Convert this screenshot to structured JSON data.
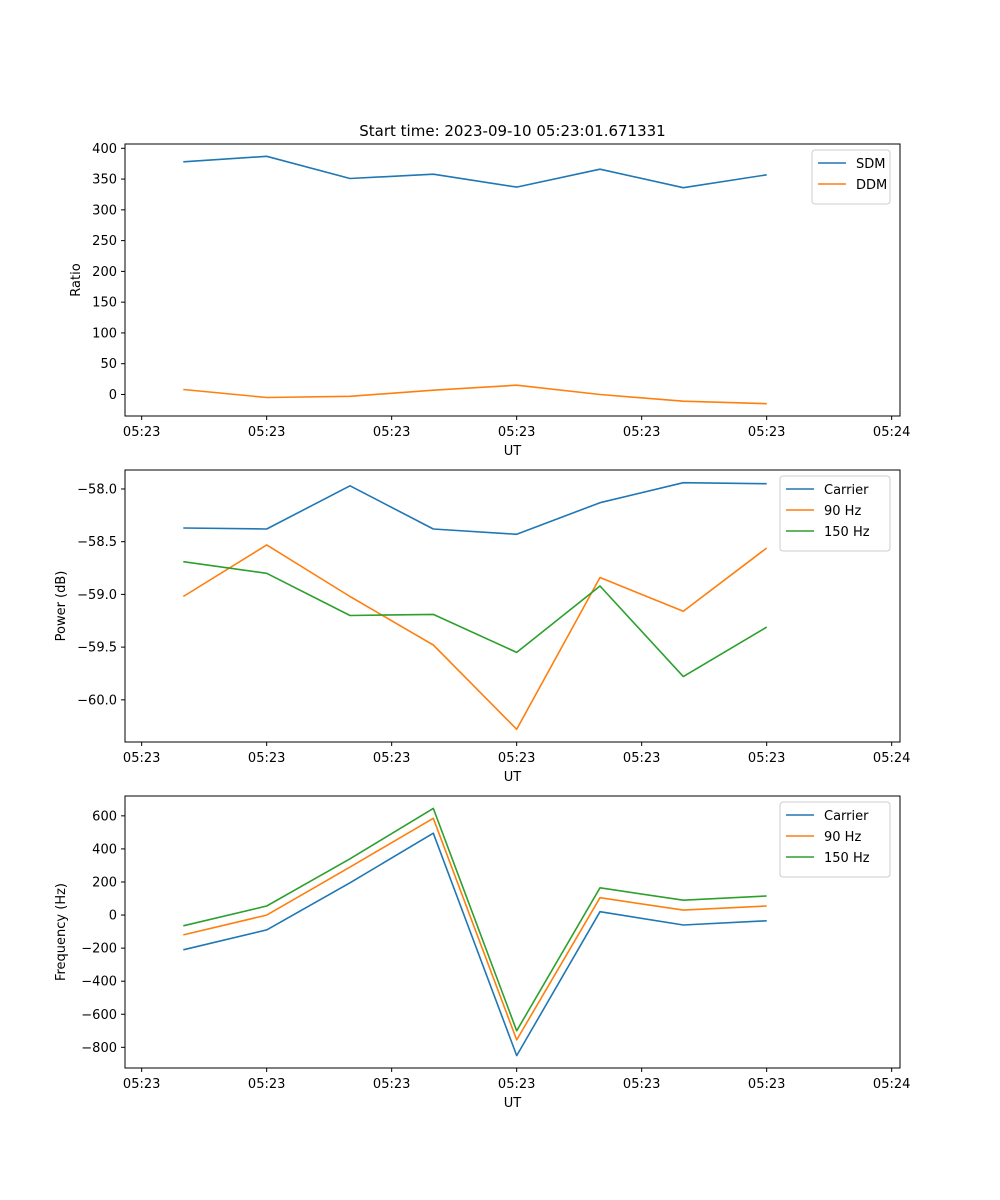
{
  "figure": {
    "title": "Start time: 2023-09-10 05:23:01.671331"
  },
  "x_ticks": [
    "05:23",
    "05:23",
    "05:23",
    "05:23",
    "05:23",
    "05:23",
    "05:24"
  ],
  "chart_data": [
    {
      "type": "line",
      "xlabel": "UT",
      "ylabel": "Ratio",
      "ylim": [
        -35,
        407
      ],
      "yticks": [
        0,
        50,
        100,
        150,
        200,
        250,
        300,
        350,
        400
      ],
      "ytick_labels": [
        "0",
        "50",
        "100",
        "150",
        "200",
        "250",
        "300",
        "350",
        "400"
      ],
      "x": [
        1,
        2,
        3,
        4,
        5,
        6,
        7,
        8
      ],
      "series": [
        {
          "name": "SDM",
          "color": "#1f77b4",
          "values": [
            378,
            387,
            351,
            358,
            337,
            366,
            336,
            357
          ]
        },
        {
          "name": "DDM",
          "color": "#ff7f0e",
          "values": [
            8,
            -5,
            -3,
            7,
            15,
            0,
            -11,
            -15
          ]
        }
      ],
      "legend": "top-right"
    },
    {
      "type": "line",
      "xlabel": "UT",
      "ylabel": "Power (dB)",
      "ylim": [
        -60.4,
        -57.82
      ],
      "yticks": [
        -58.0,
        -58.5,
        -59.0,
        -59.5,
        -60.0
      ],
      "ytick_labels": [
        "−58.0",
        "−58.5",
        "−59.0",
        "−59.5",
        "−60.0"
      ],
      "x": [
        1,
        2,
        3,
        4,
        5,
        6,
        7,
        8
      ],
      "series": [
        {
          "name": "Carrier",
          "color": "#1f77b4",
          "values": [
            -58.37,
            -58.38,
            -57.97,
            -58.38,
            -58.43,
            -58.13,
            -57.94,
            -57.95
          ]
        },
        {
          "name": "90 Hz",
          "color": "#ff7f0e",
          "values": [
            -59.02,
            -58.53,
            -59.02,
            -59.48,
            -60.28,
            -58.84,
            -59.16,
            -58.56
          ]
        },
        {
          "name": "150 Hz",
          "color": "#2ca02c",
          "values": [
            -58.69,
            -58.8,
            -59.2,
            -59.19,
            -59.55,
            -58.92,
            -59.78,
            -59.31
          ]
        }
      ],
      "legend": "top-right"
    },
    {
      "type": "line",
      "xlabel": "UT",
      "ylabel": "Frequency (Hz)",
      "ylim": [
        -925,
        720
      ],
      "yticks": [
        600,
        400,
        200,
        0,
        -200,
        -400,
        -600,
        -800
      ],
      "ytick_labels": [
        "600",
        "400",
        "200",
        "0",
        "−200",
        "−400",
        "−600",
        "−800"
      ],
      "x": [
        1,
        2,
        3,
        4,
        5,
        6,
        7,
        8
      ],
      "series": [
        {
          "name": "Carrier",
          "color": "#1f77b4",
          "values": [
            -210,
            -90,
            195,
            495,
            -850,
            20,
            -60,
            -35
          ]
        },
        {
          "name": "90 Hz",
          "color": "#ff7f0e",
          "values": [
            -120,
            0,
            290,
            585,
            -755,
            105,
            30,
            55
          ]
        },
        {
          "name": "150 Hz",
          "color": "#2ca02c",
          "values": [
            -65,
            55,
            340,
            645,
            -700,
            165,
            90,
            115
          ]
        }
      ],
      "legend": "top-right"
    }
  ]
}
